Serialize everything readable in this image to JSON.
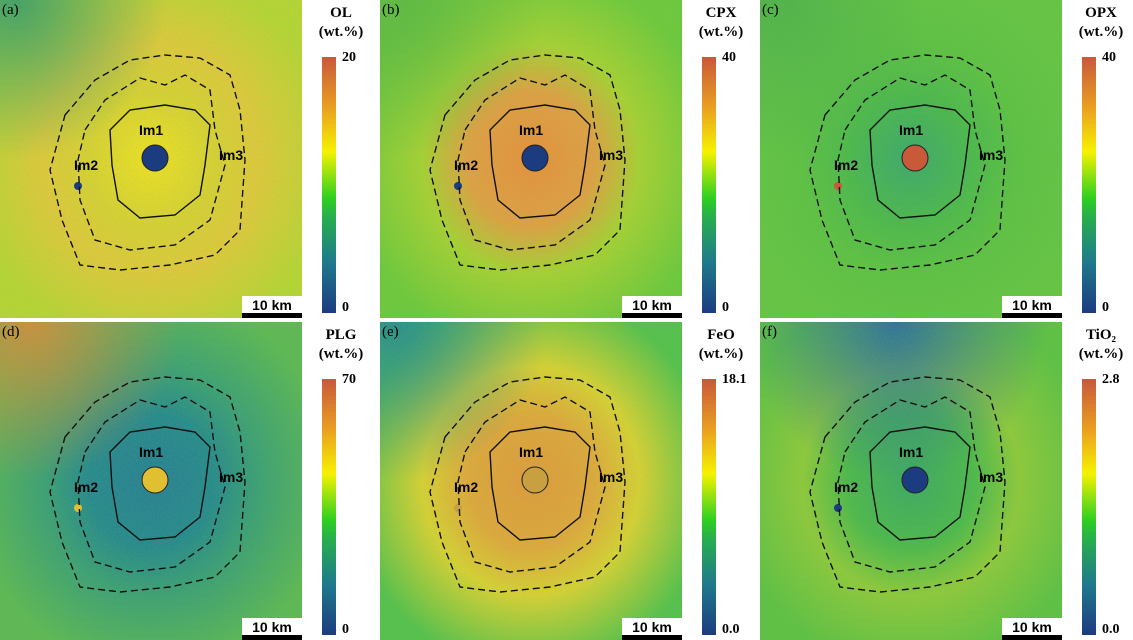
{
  "panels": [
    {
      "label": "(a)",
      "title": "OL",
      "unit": "(wt.%)",
      "max": "20",
      "min": "0",
      "scale": "10 km",
      "bg": "#b8d430",
      "outer": "#e0c838",
      "mid": "#d8d030",
      "center": "#f0e020",
      "crater": "#1c3c80",
      "corner": "#3a9a6a"
    },
    {
      "label": "(b)",
      "title": "CPX",
      "unit": "(wt.%)",
      "max": "40",
      "min": "0",
      "scale": "10 km",
      "bg": "#70c838",
      "outer": "#a8d030",
      "mid": "#e0a040",
      "center": "#e89038",
      "crater": "#1c3c80",
      "corner": "#60b840"
    },
    {
      "label": "(c)",
      "title": "OPX",
      "unit": "(wt.%)",
      "max": "40",
      "min": "0",
      "scale": "10 km",
      "bg": "#68c440",
      "outer": "#60c040",
      "mid": "#50b848",
      "center": "#40a868",
      "crater": "#c85a3a",
      "corner": "#50b048"
    },
    {
      "label": "(d)",
      "title": "PLG",
      "unit": "(wt.%)",
      "max": "70",
      "min": "0",
      "scale": "10 km",
      "bg": "#60b850",
      "outer": "#40a070",
      "mid": "#2a8a88",
      "center": "#2a8090",
      "crater": "#e0c030",
      "corner": "#d88a3a"
    },
    {
      "label": "(e)",
      "title": "FeO",
      "unit": "(wt.%)",
      "max": "18.1",
      "min": "0.0",
      "scale": "10 km",
      "bg": "#58c048",
      "outer": "#d8d030",
      "mid": "#e0a838",
      "center": "#e09a38",
      "crater": "#c8a040",
      "corner": "#2a8a90"
    },
    {
      "label": "(f)",
      "title": "TiO₂",
      "unit": "(wt.%)",
      "max": "2.8",
      "min": "0.0",
      "scale": "10 km",
      "bg": "#60c040",
      "outer": "#90c838",
      "mid": "#50b848",
      "center": "#40a860",
      "crater": "#1c3c80",
      "corner": "#2a6aa0"
    }
  ],
  "units": [
    "Im1",
    "Im2",
    "Im3"
  ]
}
